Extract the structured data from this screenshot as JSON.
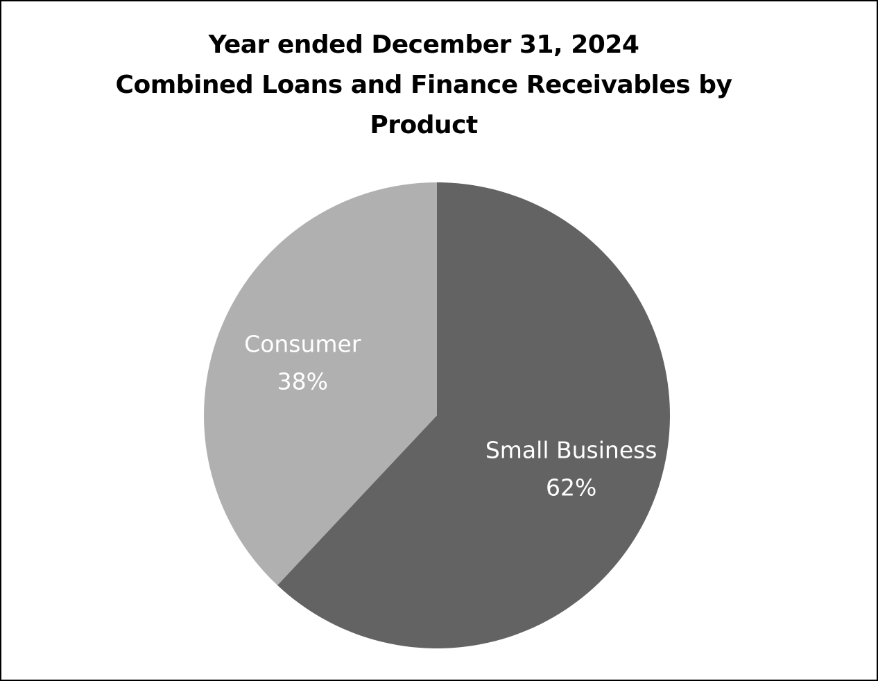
{
  "chart_data": {
    "type": "pie",
    "title_lines": [
      "Year ended December 31, 2024",
      "Combined Loans and Finance Receivables by",
      "Product"
    ],
    "slices": [
      {
        "label": "Small Business",
        "percent_label": "62%",
        "value": 62,
        "color": "#636363"
      },
      {
        "label": "Consumer",
        "percent_label": "38%",
        "value": 38,
        "color": "#b0b0b0"
      }
    ],
    "start": "12 o'clock",
    "direction": "clockwise",
    "legend": "none (labels inside slices)"
  }
}
